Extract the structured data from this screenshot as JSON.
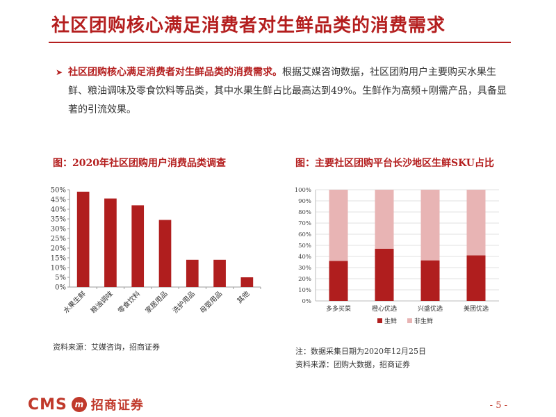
{
  "slide": {
    "title": "社区团购核心满足消费者对生鲜品类的消费需求",
    "bullet_lead": "社区团购核心满足消费者对生鲜品类的消费需求。",
    "bullet_body": "根据艾媒咨询数据，社区团购用户主要购买水果生鲜、粮油调味及零食饮料等品类，其中水果生鲜占比最高达到49%。生鲜作为高频+刚需产品，具备显著的引流效果。",
    "page_number": "- 5 -"
  },
  "figures": {
    "left_title": "图：2020年社区团购用户消费品类调查",
    "left_source": "资料来源：艾媒咨询，招商证券",
    "right_title": "图：主要社区团购平台长沙地区生鲜SKU占比",
    "right_note": "注：数据采集日期为2020年12月25日",
    "right_source": "资料来源：团购大数据，招商证券"
  },
  "footer": {
    "logo_text": "CMS",
    "logo_mark": "m",
    "company_name": "招商证券"
  },
  "colors": {
    "accent": "#b41e1e",
    "bar": "#b01e1e",
    "light_bar": "#e8b4b4"
  },
  "chart_data": [
    {
      "type": "bar",
      "title": "图：2020年社区团购用户消费品类调查",
      "categories": [
        "水果生鲜",
        "粮油调味",
        "零食饮料",
        "家居用品",
        "洗护用品",
        "母婴用品",
        "其他"
      ],
      "values": [
        0.49,
        0.455,
        0.42,
        0.345,
        0.14,
        0.14,
        0.05
      ],
      "ylim": [
        0,
        0.5
      ],
      "yticks": [
        "0%",
        "5%",
        "10%",
        "15%",
        "20%",
        "25%",
        "30%",
        "35%",
        "40%",
        "45%",
        "50%"
      ],
      "grid": false
    },
    {
      "type": "bar",
      "stacked": true,
      "title": "图：主要社区团购平台长沙地区生鲜SKU占比",
      "categories": [
        "多多买菜",
        "橙心优选",
        "兴盛优选",
        "美团优选"
      ],
      "series": [
        {
          "name": "生鲜",
          "values": [
            0.36,
            0.47,
            0.365,
            0.41
          ]
        },
        {
          "name": "非生鲜",
          "values": [
            0.64,
            0.53,
            0.635,
            0.59
          ]
        }
      ],
      "ylim": [
        0,
        1
      ],
      "yticks": [
        "0%",
        "10%",
        "20%",
        "30%",
        "40%",
        "50%",
        "60%",
        "70%",
        "80%",
        "90%",
        "100%"
      ],
      "grid": true,
      "legend": "bottom"
    }
  ]
}
